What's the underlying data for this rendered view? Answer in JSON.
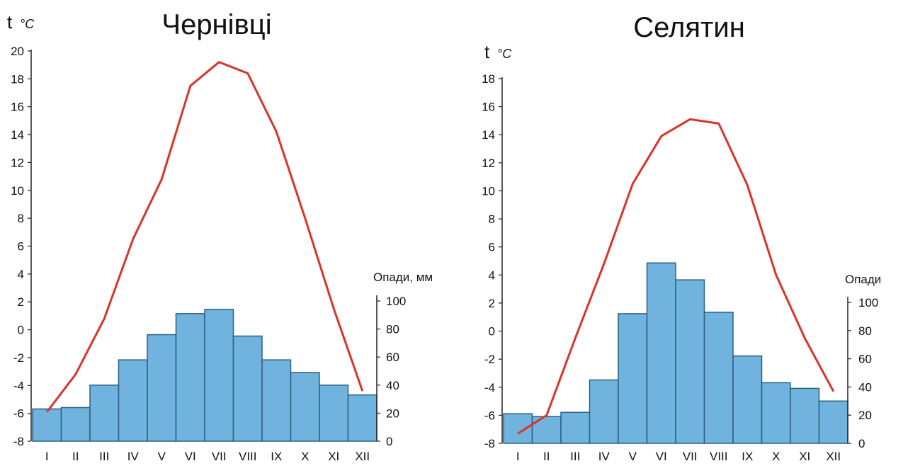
{
  "chart_data": [
    {
      "type": "bar+line",
      "title": "Чернівці",
      "temp_axis_label": "t",
      "temp_axis_unit": "°C",
      "precip_axis_label": "Опади, мм",
      "categories": [
        "I",
        "II",
        "III",
        "IV",
        "V",
        "VI",
        "VII",
        "VIII",
        "IX",
        "X",
        "XI",
        "XII"
      ],
      "temp_ylim": [
        -8,
        20
      ],
      "temp_ticks": [
        "20",
        "18",
        "16",
        "14",
        "12",
        "10",
        "8",
        "6",
        "4",
        "2",
        "0",
        "-2",
        "-4",
        "-6",
        "-8"
      ],
      "precip_ylim": [
        0,
        100
      ],
      "precip_ticks": [
        "100",
        "80",
        "60",
        "40",
        "20",
        "0"
      ],
      "series": [
        {
          "kind": "bar",
          "values": [
            23,
            24,
            40,
            58,
            76,
            91,
            94,
            75,
            58,
            49,
            40,
            33
          ]
        },
        {
          "kind": "line",
          "values": [
            -5.9,
            -3.2,
            0.8,
            6.5,
            10.8,
            17.5,
            19.2,
            18.4,
            14.2,
            8.0,
            1.5,
            -4.4
          ]
        }
      ],
      "colors": {
        "bar": "#6fb3de",
        "bar_stroke": "#2f5f80",
        "line": "#d8342b"
      }
    },
    {
      "type": "bar+line",
      "title": "Селятин",
      "temp_axis_label": "t",
      "temp_axis_unit": "°C",
      "precip_axis_label": "Опади",
      "categories": [
        "I",
        "II",
        "III",
        "IV",
        "V",
        "VI",
        "VII",
        "VIII",
        "IX",
        "X",
        "XI",
        "XII"
      ],
      "temp_ylim": [
        -8,
        18
      ],
      "temp_ticks": [
        "18",
        "16",
        "14",
        "12",
        "10",
        "8",
        "6",
        "4",
        "2",
        "0",
        "-2",
        "-4",
        "-6",
        "-8"
      ],
      "precip_ylim": [
        0,
        100
      ],
      "precip_ticks": [
        "100",
        "80",
        "60",
        "40",
        "20",
        "0"
      ],
      "series": [
        {
          "kind": "bar",
          "values": [
            21,
            19,
            22,
            45,
            92,
            128,
            116,
            93,
            62,
            43,
            39,
            30
          ]
        },
        {
          "kind": "line",
          "values": [
            -7.3,
            -6.0,
            -0.5,
            4.8,
            10.5,
            13.9,
            15.1,
            14.8,
            10.4,
            4.0,
            -0.5,
            -4.3
          ]
        }
      ],
      "colors": {
        "bar": "#6fb3de",
        "bar_stroke": "#2f5f80",
        "line": "#d8342b"
      }
    }
  ]
}
